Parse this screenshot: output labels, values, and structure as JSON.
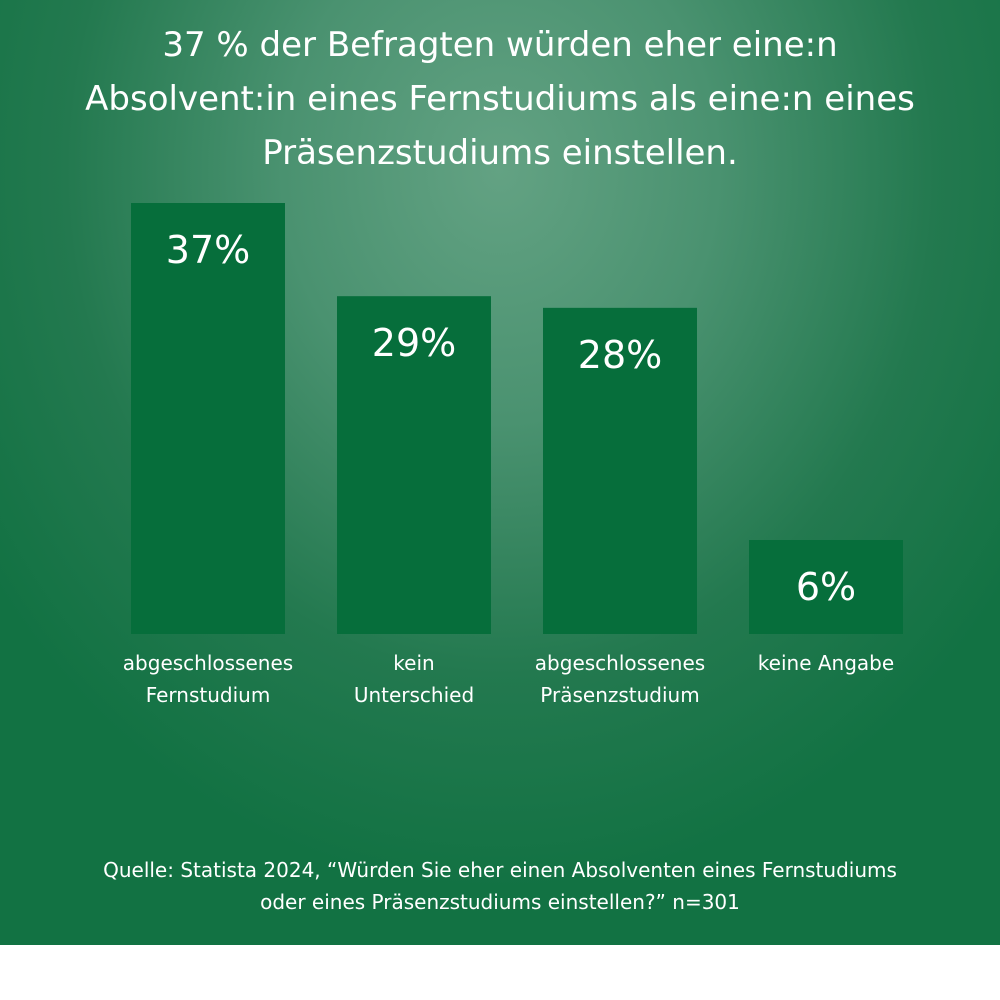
{
  "title": "37 % der Befragten würden eher eine:n Absolvent:in eines Fernstudiums als eine:n eines Präsenzstudiums einstellen.",
  "source": {
    "line1": "Quelle: Statista 2024, “Würden Sie eher einen Absolventen eines Fernstudiums",
    "line2": "oder eines Präsenzstudiums einstellen?” n=301"
  },
  "colors": {
    "bar": "#066e3b",
    "background": "#2a7d55",
    "text": "#ffffff"
  },
  "chart_data": {
    "type": "bar",
    "title": "37 % der Befragten würden eher eine:n Absolvent:in eines Fernstudiums als eine:n eines Präsenzstudiums einstellen.",
    "categories": [
      [
        "abgeschlossenes",
        "Fernstudium"
      ],
      [
        "kein",
        "Unterschied"
      ],
      [
        "abgeschlossenes",
        "Präsenzstudium"
      ],
      [
        "keine  Angabe"
      ]
    ],
    "values": [
      37,
      29,
      28,
      6
    ],
    "value_labels": [
      "37%",
      "29%",
      "28%",
      "6%"
    ],
    "unit": "%",
    "ylim": [
      0,
      37
    ],
    "grid": false,
    "xlabel": "",
    "ylabel": ""
  }
}
